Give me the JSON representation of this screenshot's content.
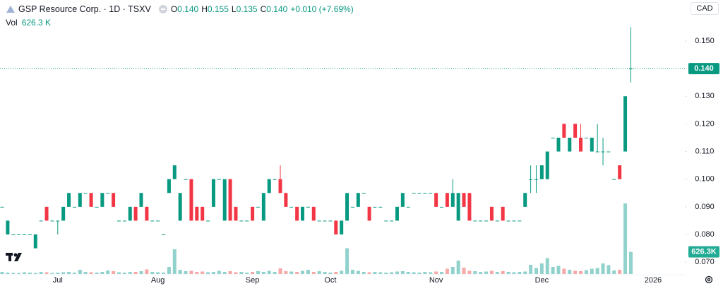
{
  "header": {
    "symbol": "GSP Resource Corp. · 1D · TSXV",
    "o_label": "O",
    "open": "0.140",
    "h_label": "H",
    "high": "0.155",
    "l_label": "L",
    "low": "0.135",
    "c_label": "C",
    "close": "0.140",
    "change": "+0.010 (+7.69%)",
    "vol_label": "Vol",
    "volume": "626.3 K",
    "currency": "CAD"
  },
  "chart_data": {
    "type": "candlestick",
    "categories": [
      null,
      null,
      null,
      null,
      null,
      null,
      null,
      null,
      null,
      null,
      "Jul",
      null,
      null,
      null,
      null,
      null,
      null,
      null,
      null,
      null,
      null,
      null,
      null,
      null,
      null,
      null,
      null,
      null,
      "Aug",
      null,
      null,
      null,
      null,
      null,
      null,
      null,
      null,
      null,
      null,
      null,
      null,
      null,
      null,
      null,
      null,
      "Sep",
      null,
      null,
      null,
      null,
      null,
      null,
      null,
      null,
      null,
      null,
      null,
      null,
      null,
      "Oct",
      null,
      null,
      null,
      null,
      null,
      null,
      null,
      null,
      null,
      null,
      null,
      null,
      null,
      null,
      null,
      null,
      null,
      null,
      "Nov",
      null,
      null,
      null,
      null,
      null,
      null,
      null,
      null,
      null,
      null,
      null,
      null,
      null,
      null,
      null,
      null,
      null,
      null,
      "Dec",
      null,
      null,
      null,
      null,
      null,
      null,
      null,
      null,
      null,
      null,
      null,
      null,
      null,
      null,
      null,
      null,
      null,
      null,
      null,
      "2026"
    ],
    "series": [
      {
        "up_color": "#089981",
        "down_color": "#f23645",
        "values": [
          [
            0.09,
            0.09,
            0.09,
            0.09
          ],
          [
            0.08,
            0.085,
            0.08,
            0.085
          ],
          [
            0.08,
            0.08,
            0.08,
            0.08
          ],
          [
            0.08,
            0.08,
            0.08,
            0.08
          ],
          [
            0.08,
            0.08,
            0.08,
            0.08
          ],
          [
            0.08,
            0.08,
            0.08,
            0.08
          ],
          [
            0.075,
            0.08,
            0.075,
            0.08
          ],
          [
            0.085,
            0.085,
            0.085,
            0.085
          ],
          [
            0.09,
            0.09,
            0.085,
            0.085
          ],
          [
            0.085,
            0.085,
            0.085,
            0.085
          ],
          [
            0.085,
            0.085,
            0.08,
            0.085
          ],
          [
            0.085,
            0.09,
            0.085,
            0.09
          ],
          [
            0.09,
            0.095,
            0.09,
            0.095
          ],
          [
            0.09,
            0.09,
            0.09,
            0.09
          ],
          [
            0.09,
            0.095,
            0.09,
            0.095
          ],
          [
            0.095,
            0.095,
            0.095,
            0.095
          ],
          [
            0.095,
            0.095,
            0.09,
            0.09
          ],
          [
            0.09,
            0.09,
            0.09,
            0.09
          ],
          [
            0.09,
            0.095,
            0.09,
            0.095
          ],
          [
            0.095,
            0.095,
            0.095,
            0.095
          ],
          [
            0.095,
            0.095,
            0.09,
            0.09
          ],
          [
            0.085,
            0.085,
            0.085,
            0.085
          ],
          [
            0.085,
            0.085,
            0.085,
            0.085
          ],
          [
            0.085,
            0.09,
            0.085,
            0.09
          ],
          [
            0.09,
            0.09,
            0.085,
            0.085
          ],
          [
            0.09,
            0.095,
            0.09,
            0.095
          ],
          [
            0.09,
            0.09,
            0.085,
            0.085
          ],
          [
            0.085,
            0.085,
            0.085,
            0.085
          ],
          [
            0.085,
            0.085,
            0.085,
            0.085
          ],
          [
            0.08,
            0.08,
            0.08,
            0.08
          ],
          [
            0.095,
            0.1,
            0.095,
            0.1
          ],
          [
            0.1,
            0.105,
            0.1,
            0.105
          ],
          [
            0.085,
            0.095,
            0.085,
            0.095
          ],
          [
            0.1,
            0.1,
            0.1,
            0.1
          ],
          [
            0.1,
            0.1,
            0.085,
            0.085
          ],
          [
            0.09,
            0.09,
            0.085,
            0.085
          ],
          [
            0.09,
            0.09,
            0.085,
            0.085
          ],
          [
            0.085,
            0.085,
            0.085,
            0.085
          ],
          [
            0.09,
            0.1,
            0.09,
            0.1
          ],
          [
            0.1,
            0.1,
            0.1,
            0.1
          ],
          [
            0.085,
            0.1,
            0.085,
            0.1
          ],
          [
            0.1,
            0.1,
            0.085,
            0.085
          ],
          [
            0.09,
            0.09,
            0.085,
            0.085
          ],
          [
            0.085,
            0.085,
            0.085,
            0.085
          ],
          [
            0.085,
            0.085,
            0.085,
            0.085
          ],
          [
            0.09,
            0.09,
            0.085,
            0.085
          ],
          [
            0.09,
            0.09,
            0.09,
            0.09
          ],
          [
            0.085,
            0.095,
            0.085,
            0.095
          ],
          [
            0.095,
            0.1,
            0.095,
            0.1
          ],
          [
            0.1,
            0.1,
            0.1,
            0.1
          ],
          [
            0.1,
            0.105,
            0.095,
            0.095
          ],
          [
            0.095,
            0.095,
            0.09,
            0.09
          ],
          [
            0.09,
            0.09,
            0.09,
            0.09
          ],
          [
            0.09,
            0.09,
            0.085,
            0.085
          ],
          [
            0.085,
            0.09,
            0.085,
            0.09
          ],
          [
            0.09,
            0.09,
            0.09,
            0.09
          ],
          [
            0.09,
            0.09,
            0.085,
            0.085
          ],
          [
            0.085,
            0.085,
            0.085,
            0.085
          ],
          [
            0.085,
            0.085,
            0.085,
            0.085
          ],
          [
            0.085,
            0.085,
            0.085,
            0.085
          ],
          [
            0.085,
            0.085,
            0.08,
            0.08
          ],
          [
            0.08,
            0.085,
            0.08,
            0.085
          ],
          [
            0.085,
            0.095,
            0.085,
            0.095
          ],
          [
            0.09,
            0.09,
            0.09,
            0.09
          ],
          [
            0.09,
            0.095,
            0.09,
            0.095
          ],
          [
            0.095,
            0.095,
            0.095,
            0.095
          ],
          [
            0.09,
            0.09,
            0.085,
            0.085
          ],
          [
            0.09,
            0.09,
            0.09,
            0.09
          ],
          [
            0.09,
            0.09,
            0.09,
            0.09
          ],
          [
            0.085,
            0.085,
            0.085,
            0.085
          ],
          [
            0.085,
            0.085,
            0.085,
            0.085
          ],
          [
            0.085,
            0.09,
            0.085,
            0.09
          ],
          [
            0.09,
            0.095,
            0.09,
            0.095
          ],
          [
            0.09,
            0.09,
            0.09,
            0.09
          ],
          [
            0.095,
            0.095,
            0.095,
            0.095
          ],
          [
            0.095,
            0.095,
            0.095,
            0.095
          ],
          [
            0.095,
            0.095,
            0.095,
            0.095
          ],
          [
            0.095,
            0.095,
            0.095,
            0.095
          ],
          [
            0.095,
            0.095,
            0.09,
            0.09
          ],
          [
            0.09,
            0.09,
            0.09,
            0.09
          ],
          [
            0.095,
            0.095,
            0.09,
            0.09
          ],
          [
            0.09,
            0.1,
            0.09,
            0.095
          ],
          [
            0.085,
            0.095,
            0.085,
            0.095
          ],
          [
            0.095,
            0.095,
            0.09,
            0.09
          ],
          [
            0.095,
            0.095,
            0.085,
            0.085
          ],
          [
            0.085,
            0.085,
            0.085,
            0.085
          ],
          [
            0.085,
            0.085,
            0.085,
            0.085
          ],
          [
            0.085,
            0.085,
            0.085,
            0.085
          ],
          [
            0.09,
            0.09,
            0.085,
            0.085
          ],
          [
            0.085,
            0.085,
            0.085,
            0.085
          ],
          [
            0.09,
            0.09,
            0.085,
            0.085
          ],
          [
            0.085,
            0.085,
            0.085,
            0.085
          ],
          [
            0.085,
            0.085,
            0.085,
            0.085
          ],
          [
            0.085,
            0.085,
            0.085,
            0.085
          ],
          [
            0.09,
            0.095,
            0.09,
            0.095
          ],
          [
            0.1,
            0.105,
            0.095,
            0.1
          ],
          [
            0.1,
            0.105,
            0.095,
            0.1
          ],
          [
            0.1,
            0.105,
            0.1,
            0.105
          ],
          [
            0.1,
            0.11,
            0.1,
            0.11
          ],
          [
            0.115,
            0.115,
            0.115,
            0.115
          ],
          [
            0.11,
            0.115,
            0.11,
            0.115
          ],
          [
            0.12,
            0.12,
            0.115,
            0.115
          ],
          [
            0.11,
            0.115,
            0.11,
            0.115
          ],
          [
            0.12,
            0.12,
            0.115,
            0.115
          ],
          [
            0.115,
            0.12,
            0.11,
            0.11
          ],
          [
            0.115,
            0.115,
            0.115,
            0.115
          ],
          [
            0.11,
            0.115,
            0.11,
            0.115
          ],
          [
            0.11,
            0.12,
            0.11,
            0.11
          ],
          [
            0.11,
            0.115,
            0.105,
            0.11
          ],
          [
            0.11,
            0.11,
            0.11,
            0.11
          ],
          [
            0.1,
            0.1,
            0.1,
            0.1
          ],
          [
            0.105,
            0.105,
            0.1,
            0.1
          ],
          [
            0.11,
            0.13,
            0.11,
            0.13
          ],
          [
            0.14,
            0.155,
            0.135,
            0.14
          ],
          null,
          null,
          null,
          null
        ]
      },
      {
        "up_color": "#92d2cc",
        "down_color": "#f7a9a7",
        "values": [
          60000,
          40000,
          30000,
          30000,
          50000,
          40000,
          30000,
          60000,
          50000,
          30000,
          40000,
          50000,
          60000,
          40000,
          120000,
          60000,
          50000,
          40000,
          60000,
          100000,
          80000,
          50000,
          40000,
          60000,
          60000,
          80000,
          130000,
          60000,
          50000,
          40000,
          200000,
          700000,
          120000,
          80000,
          90000,
          60000,
          70000,
          50000,
          60000,
          90000,
          60000,
          80000,
          50000,
          60000,
          40000,
          60000,
          80000,
          60000,
          90000,
          60000,
          160000,
          80000,
          70000,
          60000,
          90000,
          120000,
          60000,
          80000,
          60000,
          40000,
          60000,
          90000,
          730000,
          120000,
          90000,
          60000,
          50000,
          60000,
          50000,
          40000,
          50000,
          70000,
          80000,
          60000,
          50000,
          40000,
          60000,
          50000,
          70000,
          60000,
          150000,
          200000,
          380000,
          180000,
          90000,
          80000,
          60000,
          70000,
          90000,
          60000,
          80000,
          60000,
          50000,
          60000,
          70000,
          260000,
          170000,
          300000,
          450000,
          200000,
          230000,
          150000,
          120000,
          90000,
          80000,
          110000,
          150000,
          170000,
          300000,
          250000,
          100000,
          120000,
          2000000,
          626300,
          null,
          null,
          null,
          null
        ]
      }
    ],
    "ylim": [
      0.0657,
      0.1648
    ],
    "yticks": [
      {
        "value": 0.07,
        "label": "0.070"
      },
      {
        "value": 0.08,
        "label": "0.080"
      },
      {
        "value": 0.09,
        "label": "0.090"
      },
      {
        "value": 0.1,
        "label": "0.100"
      },
      {
        "value": 0.11,
        "label": "0.110"
      },
      {
        "value": 0.12,
        "label": "0.120"
      },
      {
        "value": 0.13,
        "label": "0.130"
      },
      {
        "value": 0.15,
        "label": "0.150"
      }
    ],
    "volume_lim": [
      0,
      4000000
    ],
    "last_price": {
      "value": 0.14,
      "label": "0.140",
      "color": "#089981"
    },
    "volume_badge": {
      "value": 626300,
      "label": "626.3K",
      "color": "#22ab94"
    }
  }
}
